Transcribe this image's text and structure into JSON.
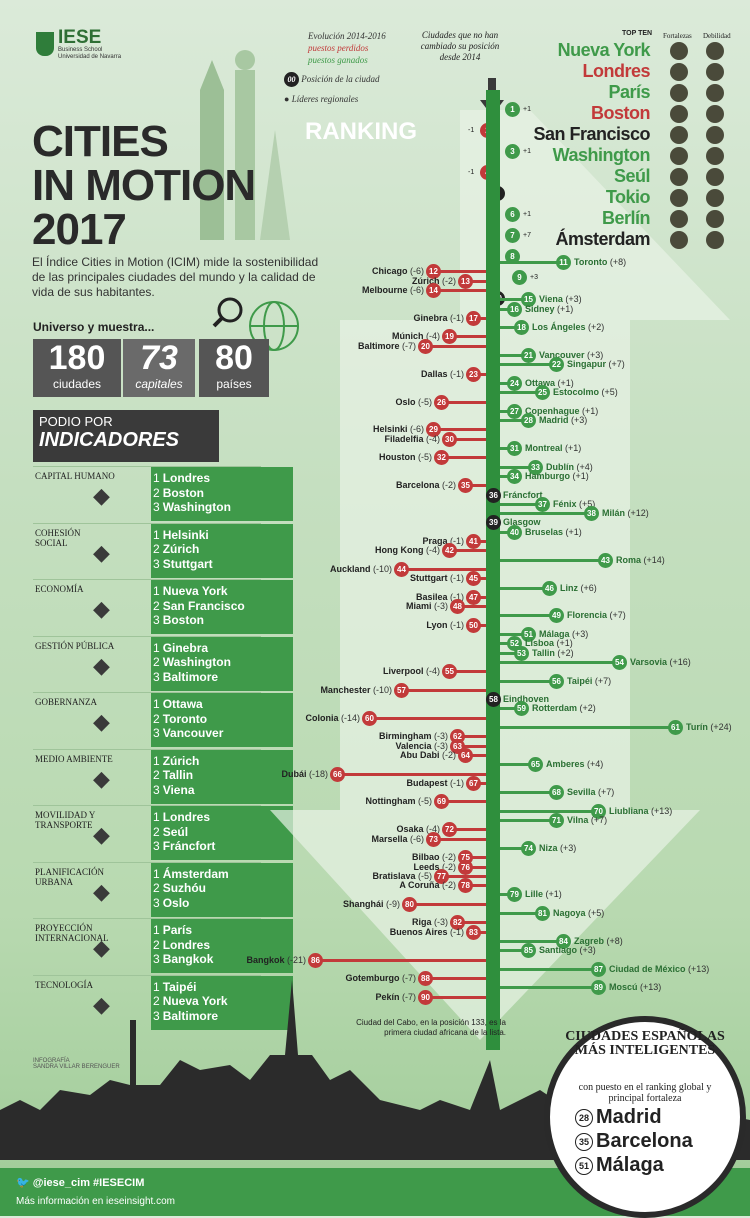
{
  "logo": {
    "name": "IESE",
    "line1": "Business School",
    "line2": "Universidad de Navarra"
  },
  "title": {
    "l1": "CITIES",
    "l2": "IN MOTION",
    "l3": "2017"
  },
  "intro": "El Índice Cities in Motion (ICIM) mide la sostenibilidad de las principales ciudades del mundo y la calidad de vida de sus habitantes.",
  "universe": {
    "label": "Universo y muestra...",
    "stats": [
      {
        "n": "180",
        "l": "ciudades"
      },
      {
        "n": "73",
        "l": "capitales"
      },
      {
        "n": "80",
        "l": "países"
      }
    ]
  },
  "podio": {
    "a": "PODIO POR",
    "b": "INDICADORES"
  },
  "indicators": [
    {
      "label": "CAPITAL HUMANO",
      "icon": "graduation-icon",
      "top": [
        "Londres",
        "Boston",
        "Washington"
      ]
    },
    {
      "label": "COHESIÓN SOCIAL",
      "icon": "family-icon",
      "top": [
        "Helsinki",
        "Zúrich",
        "Stuttgart"
      ]
    },
    {
      "label": "ECONOMÍA",
      "icon": "money-icon",
      "top": [
        "Nueva York",
        "San Francisco",
        "Boston"
      ]
    },
    {
      "label": "GESTIÓN PÚBLICA",
      "icon": "government-icon",
      "top": [
        "Ginebra",
        "Washington",
        "Baltimore"
      ]
    },
    {
      "label": "GOBERNANZA",
      "icon": "scales-icon",
      "top": [
        "Ottawa",
        "Toronto",
        "Vancouver"
      ]
    },
    {
      "label": "MEDIO AMBIENTE",
      "icon": "recycle-icon",
      "top": [
        "Zúrich",
        "Tallin",
        "Viena"
      ]
    },
    {
      "label": "MOVILIDAD Y TRANSPORTE",
      "icon": "transport-icon",
      "top": [
        "Londres",
        "Seúl",
        "Fráncfort"
      ]
    },
    {
      "label": "PLANIFICACIÓN URBANA",
      "icon": "house-icon",
      "top": [
        "Ámsterdam",
        "Suzhóu",
        "Oslo"
      ]
    },
    {
      "label": "PROYECCIÓN INTERNACIONAL",
      "icon": "hotel-icon",
      "top": [
        "París",
        "Londres",
        "Bangkok"
      ]
    },
    {
      "label": "TECNOLOGÍA",
      "icon": "social-icon",
      "top": [
        "Taipéi",
        "Nueva York",
        "Baltimore"
      ]
    }
  ],
  "legend": {
    "l1": "Evolución 2014-2016",
    "l2": "puestos perdidos",
    "l3": "puestos ganados",
    "l4": "Posición de la ciudad",
    "l5": "Líderes regionales",
    "badge": "00"
  },
  "unchanged": "Ciudades que no han cambiado su posición desde 2014",
  "ranking_label": "RANKING",
  "topten": {
    "header": "TOP TEN",
    "fort": "Fortalezas",
    "deb": "Debilidad",
    "cities": [
      {
        "n": "Nueva York",
        "c": "#3f9a4a"
      },
      {
        "n": "Londres",
        "c": "#c23a3a"
      },
      {
        "n": "París",
        "c": "#3f9a4a"
      },
      {
        "n": "Boston",
        "c": "#c23a3a"
      },
      {
        "n": "San Francisco",
        "c": "#222"
      },
      {
        "n": "Washington",
        "c": "#3f9a4a"
      },
      {
        "n": "Seúl",
        "c": "#3f9a4a"
      },
      {
        "n": "Tokio",
        "c": "#3f9a4a"
      },
      {
        "n": "Berlín",
        "c": "#3f9a4a"
      },
      {
        "n": "Ámsterdam",
        "c": "#222"
      }
    ]
  },
  "top_changes": [
    "+1",
    "-1",
    "+1",
    "-1",
    "",
    "+1",
    "+7",
    "",
    "+3",
    ""
  ],
  "left_cities": [
    {
      "r": "12",
      "n": "Chicago",
      "ch": "(-6)"
    },
    {
      "r": "13",
      "n": "Zúrich",
      "ch": "(-2)"
    },
    {
      "r": "14",
      "n": "Melbourne",
      "ch": "(-6)"
    },
    {
      "r": "17",
      "n": "Ginebra",
      "ch": "(-1)"
    },
    {
      "r": "19",
      "n": "Múnich",
      "ch": "(-4)"
    },
    {
      "r": "20",
      "n": "Baltimore",
      "ch": "(-7)"
    },
    {
      "r": "23",
      "n": "Dallas",
      "ch": "(-1)"
    },
    {
      "r": "26",
      "n": "Oslo",
      "ch": "(-5)"
    },
    {
      "r": "29",
      "n": "Helsinki",
      "ch": "(-6)"
    },
    {
      "r": "30",
      "n": "Filadelfia",
      "ch": "(-4)"
    },
    {
      "r": "32",
      "n": "Houston",
      "ch": "(-5)"
    },
    {
      "r": "35",
      "n": "Barcelona",
      "ch": "(-2)"
    },
    {
      "r": "41",
      "n": "Praga",
      "ch": "(-1)"
    },
    {
      "r": "42",
      "n": "Hong Kong",
      "ch": "(-4)"
    },
    {
      "r": "44",
      "n": "Auckland",
      "ch": "(-10)"
    },
    {
      "r": "45",
      "n": "Stuttgart",
      "ch": "(-1)"
    },
    {
      "r": "47",
      "n": "Basilea",
      "ch": "(-1)"
    },
    {
      "r": "48",
      "n": "Miami",
      "ch": "(-3)"
    },
    {
      "r": "50",
      "n": "Lyon",
      "ch": "(-1)"
    },
    {
      "r": "55",
      "n": "Liverpool",
      "ch": "(-4)"
    },
    {
      "r": "57",
      "n": "Manchester",
      "ch": "(-10)"
    },
    {
      "r": "60",
      "n": "Colonia",
      "ch": "(-14)"
    },
    {
      "r": "62",
      "n": "Birmingham",
      "ch": "(-3)"
    },
    {
      "r": "63",
      "n": "Valencia",
      "ch": "(-3)"
    },
    {
      "r": "64",
      "n": "Abu Dabi",
      "ch": "(-2)"
    },
    {
      "r": "66",
      "n": "Dubái",
      "ch": "(-18)"
    },
    {
      "r": "67",
      "n": "Budapest",
      "ch": "(-1)"
    },
    {
      "r": "69",
      "n": "Nottingham",
      "ch": "(-5)"
    },
    {
      "r": "72",
      "n": "Osaka",
      "ch": "(-4)"
    },
    {
      "r": "73",
      "n": "Marsella",
      "ch": "(-6)"
    },
    {
      "r": "75",
      "n": "Bilbao",
      "ch": "(-2)"
    },
    {
      "r": "76",
      "n": "Leeds",
      "ch": "(-2)"
    },
    {
      "r": "77",
      "n": "Bratislava",
      "ch": "(-5)"
    },
    {
      "r": "78",
      "n": "A Coruña",
      "ch": "(-2)"
    },
    {
      "r": "80",
      "n": "Shanghái",
      "ch": "(-9)"
    },
    {
      "r": "82",
      "n": "Riga",
      "ch": "(-3)"
    },
    {
      "r": "83",
      "n": "Buenos Aires",
      "ch": "(-1)"
    },
    {
      "r": "86",
      "n": "Bangkok",
      "ch": "(-21)"
    },
    {
      "r": "88",
      "n": "Gotemburgo",
      "ch": "(-7)"
    },
    {
      "r": "90",
      "n": "Pekín",
      "ch": "(-7)"
    }
  ],
  "right_cities": [
    {
      "r": "11",
      "n": "Toronto",
      "ch": "(+8)"
    },
    {
      "r": "15",
      "n": "Viena",
      "ch": "(+3)"
    },
    {
      "r": "16",
      "n": "Sidney",
      "ch": "(+1)"
    },
    {
      "r": "18",
      "n": "Los Ángeles",
      "ch": "(+2)"
    },
    {
      "r": "21",
      "n": "Vancouver",
      "ch": "(+3)"
    },
    {
      "r": "22",
      "n": "Singapur",
      "ch": "(+7)"
    },
    {
      "r": "24",
      "n": "Ottawa",
      "ch": "(+1)"
    },
    {
      "r": "25",
      "n": "Estocolmo",
      "ch": "(+5)"
    },
    {
      "r": "27",
      "n": "Copenhague",
      "ch": "(+1)"
    },
    {
      "r": "28",
      "n": "Madrid",
      "ch": "(+3)"
    },
    {
      "r": "31",
      "n": "Montreal",
      "ch": "(+1)"
    },
    {
      "r": "33",
      "n": "Dublín",
      "ch": "(+4)"
    },
    {
      "r": "34",
      "n": "Hamburgo",
      "ch": "(+1)"
    },
    {
      "r": "36",
      "n": "Fráncfort",
      "ch": ""
    },
    {
      "r": "37",
      "n": "Fénix",
      "ch": "(+5)"
    },
    {
      "r": "38",
      "n": "Milán",
      "ch": "(+12)"
    },
    {
      "r": "39",
      "n": "Glasgow",
      "ch": ""
    },
    {
      "r": "40",
      "n": "Bruselas",
      "ch": "(+1)"
    },
    {
      "r": "43",
      "n": "Roma",
      "ch": "(+14)"
    },
    {
      "r": "46",
      "n": "Linz",
      "ch": "(+6)"
    },
    {
      "r": "49",
      "n": "Florencia",
      "ch": "(+7)"
    },
    {
      "r": "51",
      "n": "Málaga",
      "ch": "(+3)"
    },
    {
      "r": "52",
      "n": "Lisboa",
      "ch": "(+1)"
    },
    {
      "r": "53",
      "n": "Tallin",
      "ch": "(+2)"
    },
    {
      "r": "54",
      "n": "Varsovia",
      "ch": "(+16)"
    },
    {
      "r": "56",
      "n": "Taipéi",
      "ch": "(+7)"
    },
    {
      "r": "58",
      "n": "Eindhoven",
      "ch": ""
    },
    {
      "r": "59",
      "n": "Rotterdam",
      "ch": "(+2)"
    },
    {
      "r": "61",
      "n": "Turín",
      "ch": "(+24)"
    },
    {
      "r": "65",
      "n": "Amberes",
      "ch": "(+4)"
    },
    {
      "r": "68",
      "n": "Sevilla",
      "ch": "(+7)"
    },
    {
      "r": "70",
      "n": "Liubliana",
      "ch": "(+13)"
    },
    {
      "r": "71",
      "n": "Vilna",
      "ch": "(+7)"
    },
    {
      "r": "74",
      "n": "Niza",
      "ch": "(+3)"
    },
    {
      "r": "79",
      "n": "Lille",
      "ch": "(+1)"
    },
    {
      "r": "81",
      "n": "Nagoya",
      "ch": "(+5)"
    },
    {
      "r": "84",
      "n": "Zagreb",
      "ch": "(+8)"
    },
    {
      "r": "85",
      "n": "Santiago",
      "ch": "(+3)"
    },
    {
      "r": "87",
      "n": "Ciudad de México",
      "ch": "(+13)"
    },
    {
      "r": "89",
      "n": "Moscú",
      "ch": "(+13)"
    }
  ],
  "capetown": "Ciudad del Cabo, en la posición 133, es la primera ciudad africana de la lista.",
  "infografia": {
    "l1": "INFOGRAFÍA",
    "l2": "SANDRA VILLAR BERENGUER"
  },
  "spain": {
    "title": "CIUDADES ESPAÑOLAS MÁS INTELIGENTES",
    "sub": "con puesto en el ranking global y principal fortaleza",
    "cities": [
      {
        "r": "28",
        "n": "Madrid"
      },
      {
        "r": "35",
        "n": "Barcelona"
      },
      {
        "r": "51",
        "n": "Málaga"
      }
    ]
  },
  "footer": {
    "handles": "@iese_cim  #IESECIM",
    "more": "Más información en ieseinsight.com"
  },
  "colors": {
    "green": "#3f9a4a",
    "red": "#c23a3a",
    "dark": "#3a3a3a"
  }
}
